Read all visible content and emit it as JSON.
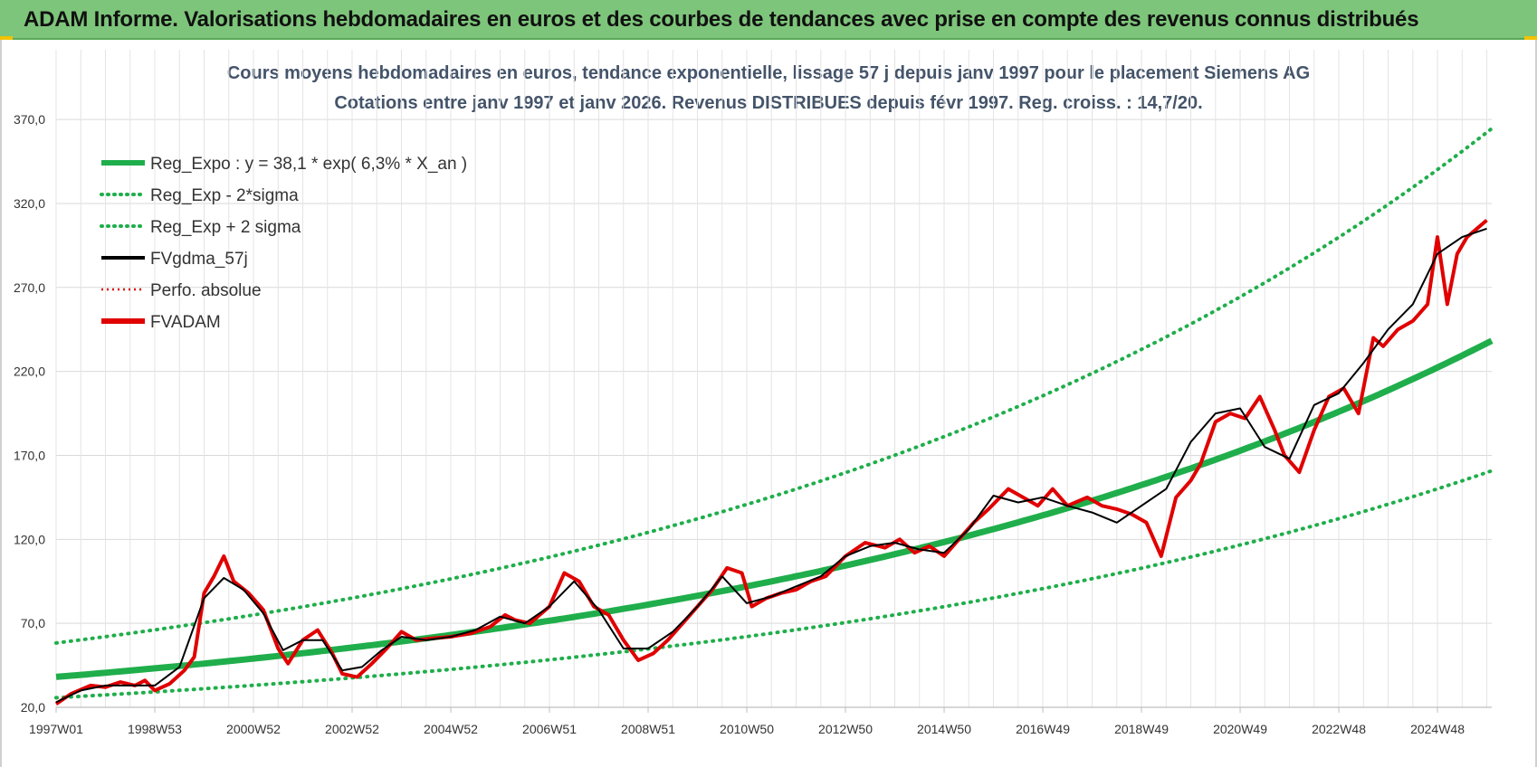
{
  "banner": {
    "title": "ADAM Informe. Valorisations hebdomadaires en euros et des courbes de tendances avec prise en compte des revenus connus distribués"
  },
  "chart_data": {
    "type": "line",
    "title": "Cours moyens hebdomadaires en euros, tendance exponentielle, lissage 57 j depuis janv 1997  pour le placement Siemens AG",
    "subtitle": "Cotations entre janv 1997 et janv 2026. Revenus DISTRIBUES depuis févr 1997. Reg. croiss. : 14,7/20.",
    "xlabel": "",
    "ylabel": "",
    "ylim": [
      20,
      390
    ],
    "yticks": [
      "20,0",
      "70,0",
      "120,0",
      "170,0",
      "220,0",
      "270,0",
      "320,0",
      "370,0"
    ],
    "xticks": [
      "1997W01",
      "1998W53",
      "2000W52",
      "2002W52",
      "2004W52",
      "2006W51",
      "2008W51",
      "2010W50",
      "2012W50",
      "2014W50",
      "2016W49",
      "2018W49",
      "2020W49",
      "2022W48",
      "2024W48"
    ],
    "xlim": [
      1997.0,
      2026.1
    ],
    "grid": true,
    "legend_position": "top-left",
    "regression": {
      "a": 38.1,
      "rate": 0.063,
      "sigma_factor_low": 0.675,
      "sigma_factor_high": 1.53
    },
    "legend": [
      {
        "name": "Reg_Expo : y = 38,1 * exp( 6,3% *  X_an )",
        "color": "#1fae4b",
        "style": "solid-thick"
      },
      {
        "name": "Reg_Exp - 2*sigma",
        "color": "#1fae4b",
        "style": "dotted"
      },
      {
        "name": "Reg_Exp + 2 sigma",
        "color": "#1fae4b",
        "style": "dotted"
      },
      {
        "name": "FVgdma_57j",
        "color": "#000000",
        "style": "solid"
      },
      {
        "name": "Perfo. absolue",
        "color": "#e00000",
        "style": "dotted"
      },
      {
        "name": "FVADAM",
        "color": "#e00000",
        "style": "solid-thick"
      }
    ],
    "series": [
      {
        "name": "FVADAM",
        "x": [
          1997.0,
          1997.3,
          1997.7,
          1998.0,
          1998.3,
          1998.6,
          1998.8,
          1999.0,
          1999.3,
          1999.6,
          1999.8,
          2000.0,
          2000.2,
          2000.4,
          2000.6,
          2000.9,
          2001.2,
          2001.5,
          2001.7,
          2002.0,
          2002.3,
          2002.6,
          2002.8,
          2003.1,
          2003.4,
          2003.7,
          2004.0,
          2004.3,
          2004.6,
          2005.0,
          2005.4,
          2005.8,
          2006.1,
          2006.3,
          2006.6,
          2007.0,
          2007.3,
          2007.6,
          2007.9,
          2008.2,
          2008.5,
          2008.8,
          2009.1,
          2009.4,
          2009.7,
          2010.0,
          2010.3,
          2010.6,
          2010.9,
          2011.1,
          2011.4,
          2011.7,
          2012.0,
          2012.3,
          2012.6,
          2013.0,
          2013.4,
          2013.8,
          2014.1,
          2014.4,
          2014.7,
          2015.0,
          2015.3,
          2015.6,
          2015.9,
          2016.3,
          2016.6,
          2016.9,
          2017.2,
          2017.5,
          2017.9,
          2018.2,
          2018.5,
          2018.8,
          2019.1,
          2019.4,
          2019.7,
          2020.0,
          2020.2,
          2020.5,
          2020.8,
          2021.1,
          2021.4,
          2021.7,
          2021.9,
          2022.2,
          2022.5,
          2022.8,
          2023.1,
          2023.4,
          2023.7,
          2023.9,
          2024.2,
          2024.5,
          2024.8,
          2025.0,
          2025.2,
          2025.4,
          2025.6,
          2025.8,
          2026.0
        ],
        "values": [
          22,
          28,
          33,
          32,
          35,
          33,
          36,
          30,
          34,
          42,
          50,
          88,
          98,
          110,
          95,
          88,
          78,
          55,
          46,
          60,
          66,
          52,
          40,
          38,
          46,
          55,
          65,
          60,
          61,
          62,
          64,
          68,
          75,
          72,
          70,
          80,
          100,
          95,
          80,
          75,
          60,
          48,
          52,
          60,
          70,
          80,
          90,
          103,
          100,
          80,
          85,
          88,
          90,
          95,
          98,
          110,
          118,
          115,
          120,
          112,
          116,
          110,
          120,
          130,
          138,
          150,
          145,
          140,
          150,
          140,
          145,
          140,
          138,
          135,
          130,
          110,
          145,
          155,
          165,
          190,
          195,
          192,
          205,
          185,
          170,
          160,
          185,
          205,
          210,
          195,
          240,
          235,
          245,
          250,
          260,
          300,
          260,
          290,
          300,
          305,
          310
        ]
      },
      {
        "name": "FVgdma_57j",
        "x": [
          1997.0,
          1997.5,
          1998.0,
          1998.5,
          1999.0,
          1999.5,
          2000.0,
          2000.4,
          2000.8,
          2001.2,
          2001.6,
          2002.0,
          2002.4,
          2002.8,
          2003.2,
          2003.6,
          2004.0,
          2004.5,
          2005.0,
          2005.5,
          2006.0,
          2006.5,
          2007.0,
          2007.5,
          2008.0,
          2008.5,
          2009.0,
          2009.5,
          2010.0,
          2010.5,
          2011.0,
          2011.5,
          2012.0,
          2012.5,
          2013.0,
          2013.5,
          2014.0,
          2014.5,
          2015.0,
          2015.5,
          2016.0,
          2016.5,
          2017.0,
          2017.5,
          2018.0,
          2018.5,
          2019.0,
          2019.5,
          2020.0,
          2020.5,
          2021.0,
          2021.5,
          2022.0,
          2022.5,
          2023.0,
          2023.5,
          2024.0,
          2024.5,
          2025.0,
          2025.5,
          2026.0
        ],
        "values": [
          23,
          30,
          33,
          33,
          33,
          44,
          85,
          97,
          90,
          76,
          54,
          60,
          60,
          42,
          44,
          54,
          62,
          60,
          62,
          66,
          74,
          70,
          80,
          95,
          78,
          55,
          55,
          65,
          80,
          98,
          82,
          86,
          92,
          98,
          110,
          116,
          118,
          114,
          112,
          126,
          146,
          142,
          145,
          140,
          136,
          130,
          140,
          150,
          178,
          195,
          198,
          175,
          168,
          200,
          207,
          225,
          245,
          260,
          290,
          300,
          305
        ]
      }
    ]
  }
}
